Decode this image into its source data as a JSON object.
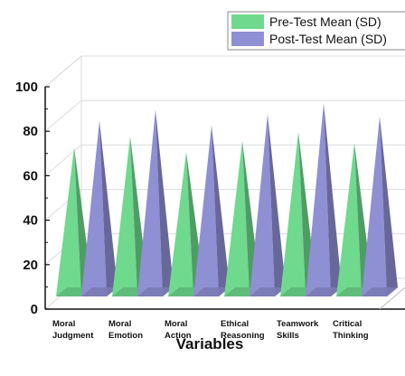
{
  "chart_data": {
    "type": "bar",
    "style": "3d-cone",
    "categories": [
      [
        "Moral",
        "Judgment"
      ],
      [
        "Moral",
        "Emotion"
      ],
      [
        "Moral",
        "Action"
      ],
      [
        "Ethical",
        "Reasoning"
      ],
      [
        "Teamwork",
        "Skills"
      ],
      [
        "Critical",
        "Thinking"
      ]
    ],
    "series": [
      {
        "name": "Pre-Test Mean (SD)",
        "color": "#6fd98e",
        "values": [
          67,
          72,
          65,
          70,
          74,
          69
        ]
      },
      {
        "name": "Post-Test Mean (SD)",
        "color": "#8f8fd4",
        "values": [
          79,
          84,
          77,
          82,
          87,
          81
        ]
      }
    ],
    "xlabel": "Variables",
    "ylabel": "",
    "ylim": [
      0,
      100
    ],
    "yticks": [
      0,
      20,
      40,
      60,
      80,
      100
    ],
    "grid": true,
    "legend_position": "top-right"
  }
}
